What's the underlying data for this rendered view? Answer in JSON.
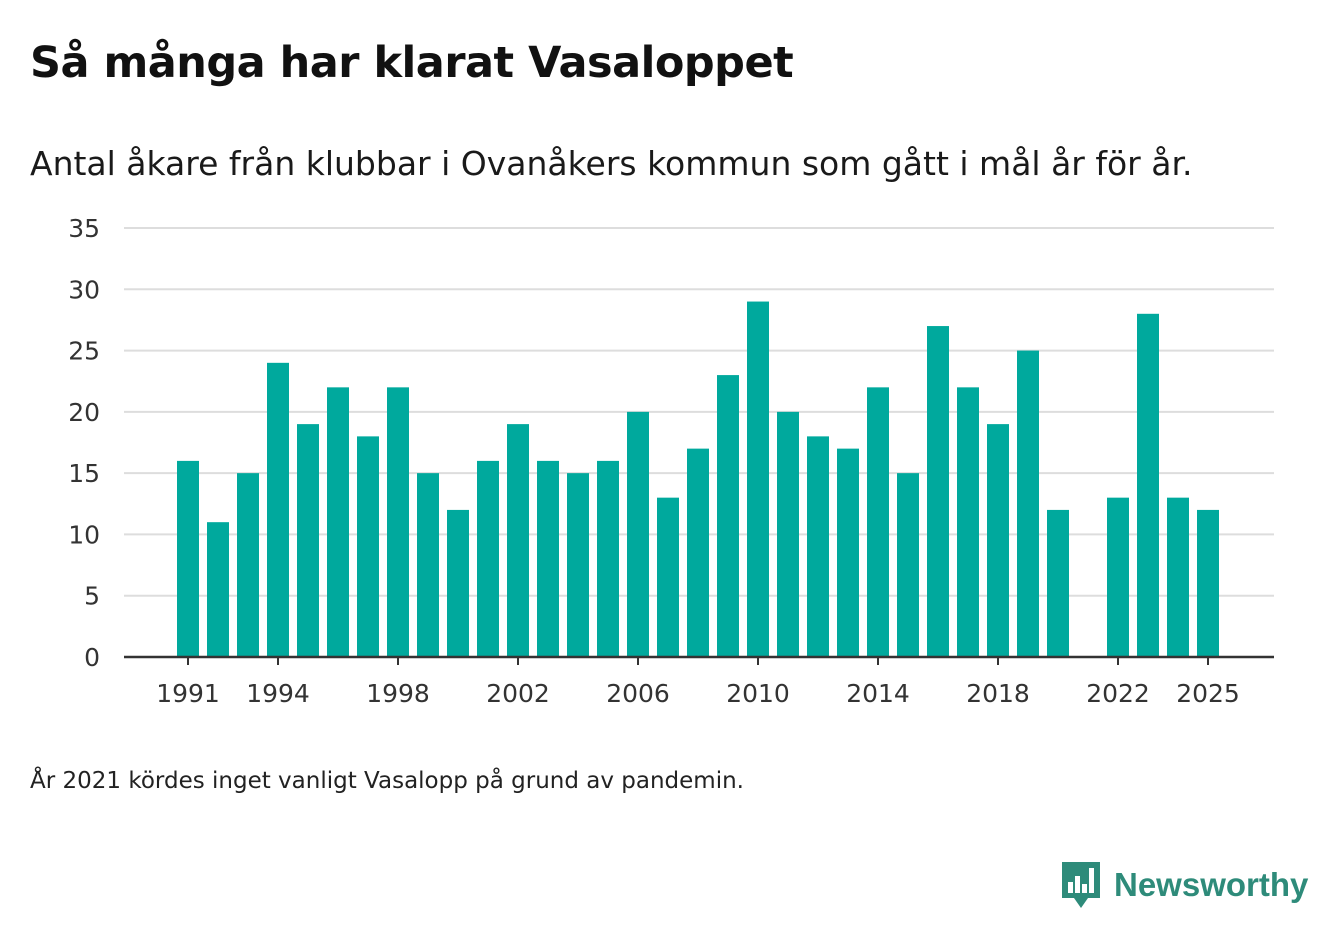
{
  "title": "Så många har klarat Vasaloppet",
  "subtitle": "Antal åkare från klubbar i Ovanåkers kommun som gått i mål år för år.",
  "note": "År 2021 kördes inget vanligt Vasalopp på grund av pandemin.",
  "brand": {
    "name": "Newsworthy",
    "logo_icon": "newsworthy-bar-chart-icon",
    "color": "#2e8b7a"
  },
  "chart_data": {
    "type": "bar",
    "title": "Så många har klarat Vasaloppet",
    "subtitle": "Antal åkare från klubbar i Ovanåkers kommun som gått i mål år för år.",
    "xlabel": "",
    "ylabel": "",
    "ylim": [
      0,
      35
    ],
    "yticks": [
      0,
      5,
      10,
      15,
      20,
      25,
      30,
      35
    ],
    "xticks": [
      1991,
      1994,
      1998,
      2002,
      2006,
      2010,
      2014,
      2018,
      2022,
      2025
    ],
    "grid": true,
    "bar_color": "#00a99d",
    "years": [
      1991,
      1992,
      1993,
      1994,
      1995,
      1996,
      1997,
      1998,
      1999,
      2000,
      2001,
      2002,
      2003,
      2004,
      2005,
      2006,
      2007,
      2008,
      2009,
      2010,
      2011,
      2012,
      2013,
      2014,
      2015,
      2016,
      2017,
      2018,
      2019,
      2020,
      2021,
      2022,
      2023,
      2024,
      2025
    ],
    "values": [
      16,
      11,
      15,
      24,
      19,
      22,
      18,
      22,
      15,
      12,
      16,
      19,
      16,
      15,
      16,
      20,
      13,
      17,
      23,
      29,
      20,
      18,
      17,
      22,
      15,
      27,
      22,
      19,
      25,
      12,
      null,
      13,
      28,
      13,
      12
    ]
  }
}
